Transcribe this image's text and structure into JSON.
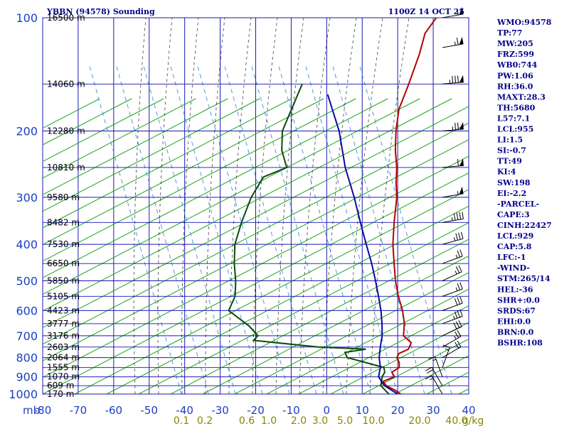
{
  "header": {
    "left_title": "YBBN (94578) Sounding",
    "right_title": "1100Z 14 OCT 25"
  },
  "stats": [
    "WMO:94578",
    "TP:77",
    "MW:205",
    "FRZ:599",
    "WB0:744",
    "PW:1.06",
    "RH:36.0",
    "MAXT:28.3",
    "TH:5680",
    "L57:7.1",
    "LCL:955",
    "LI:1.5",
    "SI:-0.7",
    "TT:49",
    "KI:4",
    "SW:198",
    "EI:-2.2",
    "-PARCEL-",
    "CAPE:3",
    "CINH:22427",
    "LCL:929",
    "CAP:5.8",
    "LFC:-1",
    "-WIND-",
    "STM:265/14",
    "HEL:-36",
    "SHR+:0.0",
    "SRDS:67",
    "EHI:0.0",
    "BRN:0.0",
    "BSHR:108"
  ],
  "colors": {
    "grid": "#1a1ab4",
    "isotherm": "#1a1ab4",
    "dry_adiabat": "#22a022",
    "moist_adiabat": "#000000",
    "mixing_ratio": "#3a8fd6",
    "temperature": "#b40000",
    "dewpoint": "#0a4a0a",
    "parcel": "#0a0aa0",
    "label": "#1a3fc4",
    "side_text": "#00008b",
    "mixing_label": "#8a8400"
  },
  "chart_data": {
    "type": "line",
    "title": "YBBN (94578) Sounding",
    "x_axis": {
      "unit": "°C",
      "range": [
        -80,
        40
      ],
      "ticks": [
        -80,
        -70,
        -60,
        -50,
        -40,
        -30,
        -20,
        -10,
        0,
        10,
        20,
        30,
        40
      ],
      "tick_labels": [
        "-80",
        "-70",
        "-60",
        "-50",
        "-40",
        "-30",
        "-20",
        "-10",
        "0",
        "10",
        "20",
        "30",
        "40"
      ],
      "corner_label": "mb"
    },
    "y_axis": {
      "unit": "mb",
      "scale": "log",
      "range": [
        1000,
        100
      ],
      "ticks": [
        100,
        200,
        300,
        400,
        500,
        600,
        700,
        800,
        900,
        1000
      ],
      "tick_labels": [
        "100",
        "200",
        "300",
        "400",
        "500",
        "600",
        "700",
        "800",
        "900",
        "1000"
      ]
    },
    "heights": [
      {
        "p": 100,
        "label": "16500 m"
      },
      {
        "p": 150,
        "label": "14060 m"
      },
      {
        "p": 200,
        "label": "12280 m"
      },
      {
        "p": 250,
        "label": "10810 m"
      },
      {
        "p": 300,
        "label": "9580 m"
      },
      {
        "p": 350,
        "label": "8482 m"
      },
      {
        "p": 400,
        "label": "7530 m"
      },
      {
        "p": 450,
        "label": "6650 m"
      },
      {
        "p": 500,
        "label": "5850 m"
      },
      {
        "p": 550,
        "label": "5105 m"
      },
      {
        "p": 600,
        "label": "4423 m"
      },
      {
        "p": 650,
        "label": "3777 m"
      },
      {
        "p": 700,
        "label": "3176 m"
      },
      {
        "p": 750,
        "label": "2603 m"
      },
      {
        "p": 800,
        "label": "2064 m"
      },
      {
        "p": 850,
        "label": "1555 m"
      },
      {
        "p": 900,
        "label": "1070 m"
      },
      {
        "p": 950,
        "label": "609 m"
      },
      {
        "p": 1000,
        "label": "170 m"
      }
    ],
    "mixing_ratio_labels": [
      "0.1",
      "0.2",
      "0.6",
      "1.0",
      "2.0",
      "3.0",
      "5.0",
      "10.0",
      "20.0",
      "40.0",
      "g/kg"
    ],
    "series": [
      {
        "key": "temperature",
        "points": [
          [
            1010,
            22.0
          ],
          [
            975,
            18.0
          ],
          [
            950,
            14.5
          ],
          [
            925,
            12.5
          ],
          [
            900,
            14.5
          ],
          [
            875,
            12.5
          ],
          [
            850,
            13.3
          ],
          [
            825,
            12.0
          ],
          [
            800,
            10.0
          ],
          [
            780,
            9.5
          ],
          [
            760,
            11.0
          ],
          [
            730,
            10.0
          ],
          [
            700,
            6.0
          ],
          [
            650,
            3.0
          ],
          [
            600,
            -1.0
          ],
          [
            550,
            -6.0
          ],
          [
            500,
            -11.0
          ],
          [
            450,
            -16.0
          ],
          [
            400,
            -21.5
          ],
          [
            350,
            -27.0
          ],
          [
            300,
            -33.0
          ],
          [
            275,
            -37.0
          ],
          [
            250,
            -41.0
          ],
          [
            225,
            -46.0
          ],
          [
            200,
            -51.0
          ],
          [
            175,
            -56.0
          ],
          [
            150,
            -60.0
          ],
          [
            125,
            -65.0
          ],
          [
            110,
            -69.0
          ],
          [
            100,
            -70.0
          ]
        ]
      },
      {
        "key": "dewpoint",
        "points": [
          [
            1000,
            17.5
          ],
          [
            950,
            13.0
          ],
          [
            900,
            11.0
          ],
          [
            875,
            10.5
          ],
          [
            850,
            9.0
          ],
          [
            800,
            -4.0
          ],
          [
            775,
            -6.0
          ],
          [
            760,
            -1.0
          ],
          [
            750,
            -15.0
          ],
          [
            720,
            -35.0
          ],
          [
            700,
            -35.0
          ],
          [
            660,
            -40.0
          ],
          [
            600,
            -50.0
          ],
          [
            550,
            -52.0
          ],
          [
            500,
            -56.0
          ],
          [
            450,
            -61.0
          ],
          [
            400,
            -66.0
          ],
          [
            350,
            -70.0
          ],
          [
            300,
            -74.0
          ],
          [
            265,
            -76.0
          ],
          [
            250,
            -72.0
          ],
          [
            225,
            -78.0
          ],
          [
            200,
            -83.0
          ],
          [
            150,
            -90.0
          ]
        ]
      },
      {
        "key": "parcel",
        "points": [
          [
            1000,
            20.0
          ],
          [
            950,
            14.0
          ],
          [
            900,
            10.0
          ],
          [
            850,
            8.0
          ],
          [
            800,
            5.0
          ],
          [
            750,
            2.5
          ],
          [
            700,
            0.0
          ],
          [
            650,
            -3.3
          ],
          [
            600,
            -7.1
          ],
          [
            550,
            -11.6
          ],
          [
            500,
            -16.6
          ],
          [
            450,
            -22.3
          ],
          [
            400,
            -29.0
          ],
          [
            350,
            -36.5
          ],
          [
            300,
            -45.0
          ],
          [
            250,
            -55.5
          ],
          [
            200,
            -67.0
          ],
          [
            160,
            -80.0
          ]
        ]
      }
    ],
    "wind_barbs": [
      {
        "p": 100,
        "dir": 260,
        "spd": 55
      },
      {
        "p": 120,
        "dir": 260,
        "spd": 65
      },
      {
        "p": 150,
        "dir": 265,
        "spd": 85
      },
      {
        "p": 200,
        "dir": 265,
        "spd": 75
      },
      {
        "p": 250,
        "dir": 265,
        "spd": 60
      },
      {
        "p": 300,
        "dir": 260,
        "spd": 55
      },
      {
        "p": 350,
        "dir": 260,
        "spd": 45
      },
      {
        "p": 400,
        "dir": 255,
        "spd": 35
      },
      {
        "p": 450,
        "dir": 250,
        "spd": 25
      },
      {
        "p": 500,
        "dir": 245,
        "spd": 25
      },
      {
        "p": 550,
        "dir": 250,
        "spd": 25
      },
      {
        "p": 600,
        "dir": 250,
        "spd": 30
      },
      {
        "p": 650,
        "dir": 250,
        "spd": 35
      },
      {
        "p": 700,
        "dir": 245,
        "spd": 30
      },
      {
        "p": 750,
        "dir": 240,
        "spd": 25
      },
      {
        "p": 800,
        "dir": 240,
        "spd": 20
      },
      {
        "p": 850,
        "dir": 200,
        "spd": 15
      },
      {
        "p": 900,
        "dir": 160,
        "spd": 15
      },
      {
        "p": 950,
        "dir": 150,
        "spd": 20
      },
      {
        "p": 1000,
        "dir": 150,
        "spd": 15
      }
    ]
  }
}
